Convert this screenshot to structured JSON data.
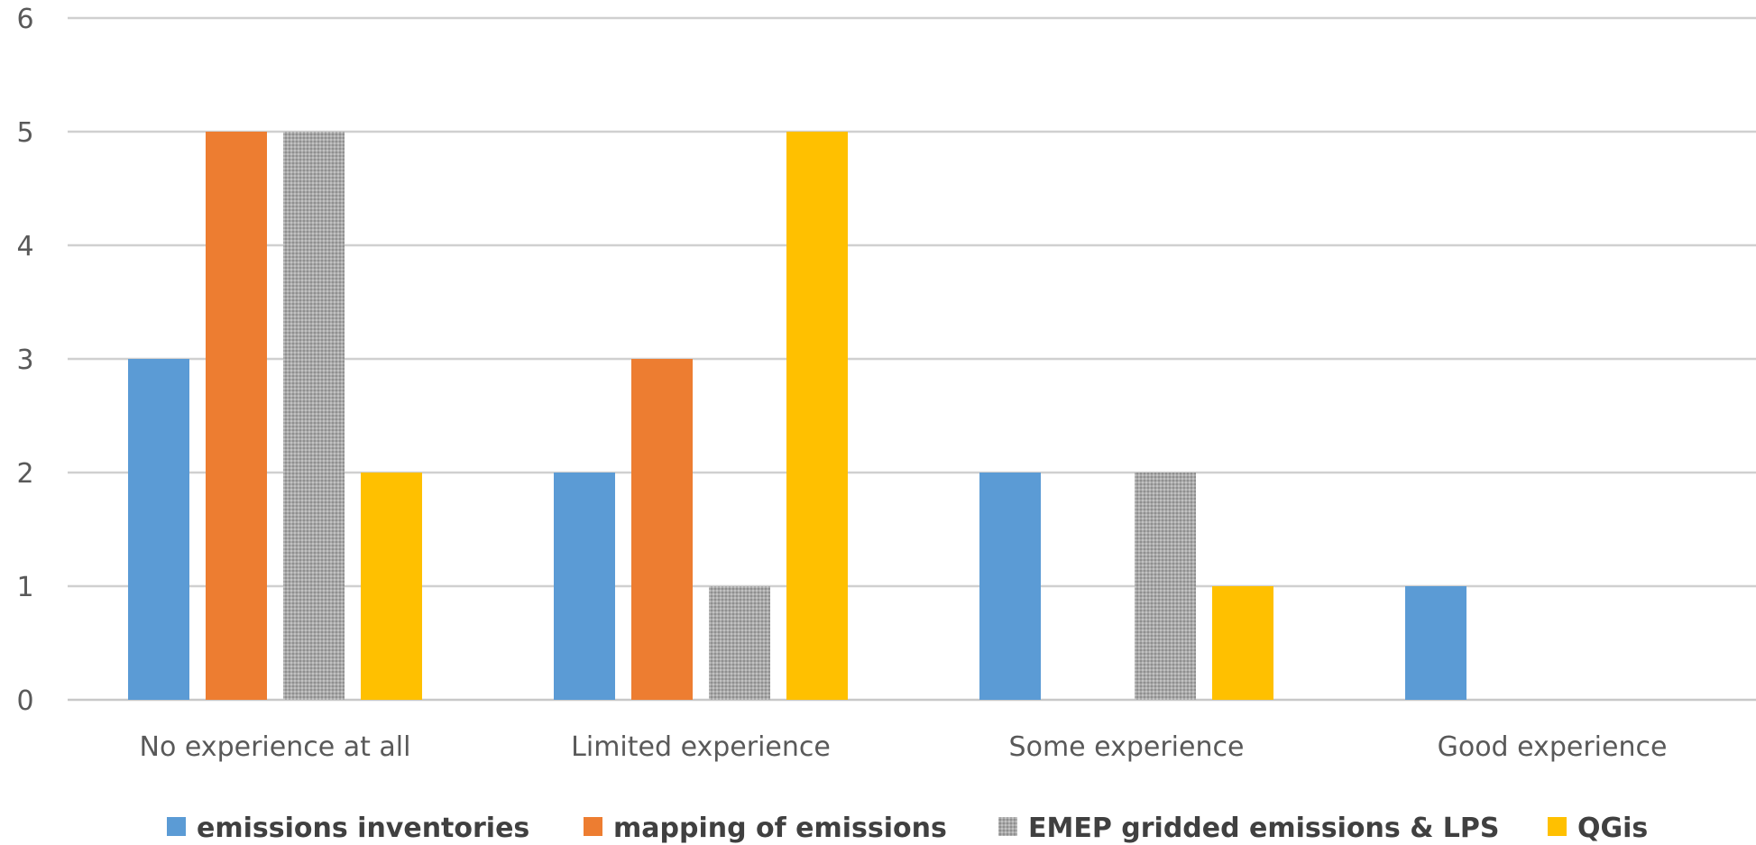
{
  "chart_data": {
    "type": "bar",
    "categories": [
      "No experience at all",
      "Limited experience",
      "Some experience",
      "Good experience"
    ],
    "series": [
      {
        "name": "emissions inventories",
        "values": [
          3,
          2,
          2,
          1
        ],
        "color": "#5B9BD5",
        "pattern": "solid"
      },
      {
        "name": "mapping of emissions",
        "values": [
          5,
          3,
          0,
          0
        ],
        "color": "#ED7D31",
        "pattern": "solid"
      },
      {
        "name": "EMEP gridded emissions & LPS",
        "values": [
          5,
          1,
          2,
          0
        ],
        "color": "#A5A5A5",
        "pattern": "dotted"
      },
      {
        "name": "QGis",
        "values": [
          2,
          5,
          1,
          0
        ],
        "color": "#FFC000",
        "pattern": "solid"
      }
    ],
    "ylim": [
      0,
      6
    ],
    "yticks": [
      "0",
      "1",
      "2",
      "3",
      "4",
      "5",
      "6"
    ],
    "grid": true,
    "legend_position": "bottom"
  }
}
